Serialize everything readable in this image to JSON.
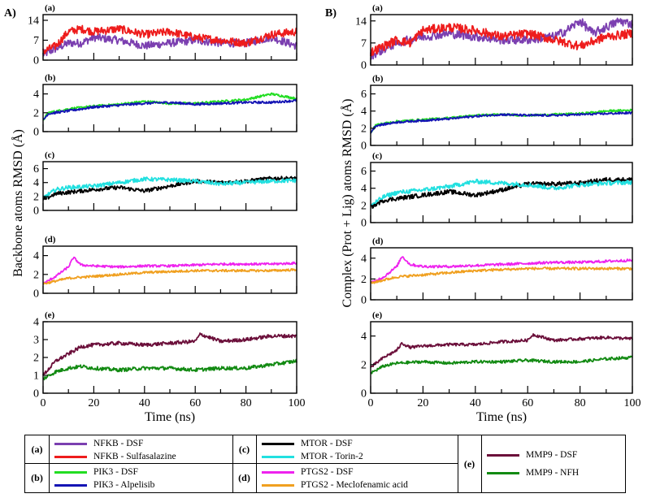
{
  "figure": {
    "panel_a_label": "A)",
    "panel_b_label": "B)",
    "ylabel_left": "Backbone atoms RMSD (Å)",
    "ylabel_right": "Complex (Prot + Lig) atoms RMSD (Å)",
    "xlabel": "Time (ns)",
    "x_ticks": [
      "0",
      "20",
      "40",
      "60",
      "80",
      "100"
    ]
  },
  "legend": {
    "groups": [
      {
        "tag": "(a)",
        "entries": [
          {
            "label": "NFKB - DSF",
            "color": "#7b3fb0"
          },
          {
            "label": "NFKB - Sulfasalazine",
            "color": "#ee1c1c"
          }
        ]
      },
      {
        "tag": "(b)",
        "entries": [
          {
            "label": "PIK3 - DSF",
            "color": "#22dd22"
          },
          {
            "label": "PIK3 - Alpelisib",
            "color": "#1414b4"
          }
        ]
      },
      {
        "tag": "(c)",
        "entries": [
          {
            "label": "MTOR - DSF",
            "color": "#000000"
          },
          {
            "label": "MTOR - Torin-2",
            "color": "#22e0e0"
          }
        ]
      },
      {
        "tag": "(d)",
        "entries": [
          {
            "label": "PTGS2 - DSF",
            "color": "#ee22ee"
          },
          {
            "label": "PTGS2 - Meclofenamic acid",
            "color": "#f0a020"
          }
        ]
      },
      {
        "tag": "(e)",
        "entries": [
          {
            "label": "MMP9 - DSF",
            "color": "#6b0f3a"
          },
          {
            "label": "MMP9 - NFH",
            "color": "#128a12"
          }
        ]
      }
    ]
  },
  "chart_data": [
    {
      "type": "line",
      "panel": "A(a)",
      "title": "(a)",
      "xlabel": "Time (ns)",
      "ylabel": "Backbone atoms RMSD (Å)",
      "xlim": [
        0,
        100
      ],
      "ylim": [
        0,
        16
      ],
      "yticks": [
        0,
        7,
        14
      ],
      "series": [
        {
          "name": "NFKB - DSF",
          "color": "#7b3fb0",
          "x": [
            0,
            5,
            10,
            15,
            20,
            30,
            40,
            50,
            60,
            70,
            80,
            90,
            100
          ],
          "y": [
            2,
            4,
            6,
            6,
            8,
            7,
            5,
            6,
            7,
            6,
            6,
            8,
            5
          ]
        },
        {
          "name": "NFKB - Sulfasalazine",
          "color": "#ee1c1c",
          "x": [
            0,
            5,
            10,
            15,
            20,
            30,
            40,
            50,
            60,
            70,
            80,
            90,
            100
          ],
          "y": [
            3,
            5,
            10,
            11,
            10,
            11,
            9,
            10,
            8,
            7,
            6,
            9,
            10
          ]
        }
      ]
    },
    {
      "type": "line",
      "panel": "A(b)",
      "title": "(b)",
      "xlabel": "Time (ns)",
      "ylabel": "Backbone atoms RMSD (Å)",
      "xlim": [
        0,
        100
      ],
      "ylim": [
        0,
        5
      ],
      "yticks": [
        0,
        2,
        4
      ],
      "series": [
        {
          "name": "PIK3 - DSF",
          "color": "#22dd22",
          "x": [
            0,
            2,
            10,
            20,
            30,
            40,
            50,
            60,
            70,
            80,
            90,
            100
          ],
          "y": [
            1.2,
            2.0,
            2.4,
            2.7,
            2.9,
            3.2,
            3.0,
            3.0,
            3.2,
            3.4,
            4.0,
            3.5
          ]
        },
        {
          "name": "PIK3 - Alpelisib",
          "color": "#1414b4",
          "x": [
            0,
            2,
            10,
            20,
            30,
            40,
            50,
            60,
            70,
            80,
            90,
            100
          ],
          "y": [
            1.2,
            1.9,
            2.2,
            2.6,
            2.8,
            3.0,
            3.1,
            2.9,
            3.0,
            3.1,
            3.1,
            3.3
          ]
        }
      ]
    },
    {
      "type": "line",
      "panel": "A(c)",
      "title": "(c)",
      "xlabel": "Time (ns)",
      "ylabel": "Backbone atoms RMSD (Å)",
      "xlim": [
        0,
        100
      ],
      "ylim": [
        0,
        7
      ],
      "yticks": [
        0,
        2,
        4,
        6
      ],
      "series": [
        {
          "name": "MTOR - DSF",
          "color": "#000000",
          "x": [
            0,
            5,
            10,
            20,
            30,
            40,
            50,
            60,
            70,
            80,
            90,
            100
          ],
          "y": [
            1.5,
            2.4,
            2.6,
            3.0,
            3.3,
            2.8,
            3.5,
            4.2,
            4.0,
            4.2,
            4.6,
            4.6
          ]
        },
        {
          "name": "MTOR - Torin-2",
          "color": "#22e0e0",
          "x": [
            0,
            5,
            10,
            20,
            30,
            40,
            50,
            60,
            70,
            80,
            90,
            100
          ],
          "y": [
            1.8,
            3.0,
            3.3,
            3.5,
            4.0,
            4.5,
            4.4,
            4.2,
            3.8,
            4.0,
            4.2,
            4.3
          ]
        }
      ]
    },
    {
      "type": "line",
      "panel": "A(d)",
      "title": "(d)",
      "xlabel": "Time (ns)",
      "ylabel": "Backbone atoms RMSD (Å)",
      "xlim": [
        0,
        100
      ],
      "ylim": [
        0,
        5
      ],
      "yticks": [
        0,
        2,
        4
      ],
      "series": [
        {
          "name": "PTGS2 - DSF",
          "color": "#ee22ee",
          "x": [
            0,
            5,
            10,
            12,
            15,
            20,
            30,
            40,
            50,
            60,
            70,
            80,
            90,
            100
          ],
          "y": [
            1.0,
            1.8,
            2.8,
            3.8,
            3.0,
            2.9,
            2.8,
            2.9,
            2.9,
            3.0,
            3.1,
            3.1,
            3.1,
            3.2
          ]
        },
        {
          "name": "PTGS2 - Meclofenamic acid",
          "color": "#f0a020",
          "x": [
            0,
            5,
            10,
            20,
            30,
            40,
            50,
            60,
            70,
            80,
            90,
            100
          ],
          "y": [
            1.0,
            1.3,
            1.6,
            1.8,
            2.0,
            2.2,
            2.3,
            2.4,
            2.4,
            2.4,
            2.4,
            2.5
          ]
        }
      ]
    },
    {
      "type": "line",
      "panel": "A(e)",
      "title": "(e)",
      "xlabel": "Time (ns)",
      "ylabel": "Backbone atoms RMSD (Å)",
      "xlim": [
        0,
        100
      ],
      "ylim": [
        0,
        4
      ],
      "yticks": [
        0,
        1,
        2,
        3,
        4
      ],
      "series": [
        {
          "name": "MMP9 - DSF",
          "color": "#6b0f3a",
          "x": [
            0,
            5,
            10,
            15,
            20,
            30,
            40,
            50,
            60,
            62,
            70,
            80,
            90,
            100
          ],
          "y": [
            1.0,
            1.8,
            2.2,
            2.6,
            2.7,
            2.8,
            2.7,
            2.8,
            2.9,
            3.3,
            2.9,
            3.0,
            3.2,
            3.2
          ]
        },
        {
          "name": "MMP9 - NFH",
          "color": "#128a12",
          "x": [
            0,
            5,
            10,
            15,
            20,
            30,
            40,
            50,
            60,
            70,
            80,
            90,
            100
          ],
          "y": [
            0.8,
            1.2,
            1.4,
            1.5,
            1.4,
            1.3,
            1.4,
            1.4,
            1.3,
            1.4,
            1.4,
            1.6,
            1.8
          ]
        }
      ]
    },
    {
      "type": "line",
      "panel": "B(a)",
      "title": "(a)",
      "xlabel": "Time (ns)",
      "ylabel": "Complex (Prot + Lig) atoms RMSD (Å)",
      "xlim": [
        0,
        100
      ],
      "ylim": [
        0,
        16
      ],
      "yticks": [
        0,
        7,
        14
      ],
      "series": [
        {
          "name": "NFKB - DSF",
          "color": "#7b3fb0",
          "x": [
            0,
            5,
            10,
            15,
            20,
            30,
            40,
            50,
            60,
            70,
            75,
            80,
            85,
            90,
            95,
            100
          ],
          "y": [
            3,
            5,
            7,
            8,
            9,
            10,
            9,
            8,
            8,
            9,
            11,
            14,
            10,
            12,
            14,
            13
          ]
        },
        {
          "name": "NFKB - Sulfasalazine",
          "color": "#ee1c1c",
          "x": [
            0,
            5,
            10,
            15,
            20,
            30,
            40,
            50,
            60,
            70,
            80,
            90,
            100
          ],
          "y": [
            4,
            6,
            8,
            7,
            11,
            12,
            11,
            9,
            10,
            8,
            6,
            9,
            10
          ]
        }
      ]
    },
    {
      "type": "line",
      "panel": "B(b)",
      "title": "(b)",
      "xlabel": "Time (ns)",
      "ylabel": "Complex (Prot + Lig) atoms RMSD (Å)",
      "xlim": [
        0,
        100
      ],
      "ylim": [
        0,
        7
      ],
      "yticks": [
        0,
        2,
        4,
        6
      ],
      "series": [
        {
          "name": "PIK3 - DSF",
          "color": "#22dd22",
          "x": [
            0,
            2,
            10,
            20,
            30,
            40,
            50,
            60,
            70,
            80,
            90,
            100
          ],
          "y": [
            1.5,
            2.4,
            2.8,
            3.0,
            3.2,
            3.5,
            3.6,
            3.5,
            3.6,
            3.7,
            4.0,
            4.1
          ]
        },
        {
          "name": "PIK3 - Alpelisib",
          "color": "#1414b4",
          "x": [
            0,
            2,
            10,
            20,
            30,
            40,
            50,
            60,
            70,
            80,
            90,
            100
          ],
          "y": [
            1.5,
            2.3,
            2.7,
            2.9,
            3.1,
            3.4,
            3.6,
            3.5,
            3.5,
            3.6,
            3.7,
            3.8
          ]
        }
      ]
    },
    {
      "type": "line",
      "panel": "B(c)",
      "title": "(c)",
      "xlabel": "Time (ns)",
      "ylabel": "Complex (Prot + Lig) atoms RMSD (Å)",
      "xlim": [
        0,
        100
      ],
      "ylim": [
        0,
        7
      ],
      "yticks": [
        0,
        2,
        4,
        6
      ],
      "series": [
        {
          "name": "MTOR - DSF",
          "color": "#000000",
          "x": [
            0,
            5,
            10,
            20,
            30,
            40,
            50,
            60,
            70,
            80,
            90,
            100
          ],
          "y": [
            1.8,
            2.6,
            2.8,
            3.2,
            3.6,
            3.2,
            3.8,
            4.5,
            4.5,
            4.6,
            5.0,
            5.0
          ]
        },
        {
          "name": "MTOR - Torin-2",
          "color": "#22e0e0",
          "x": [
            0,
            5,
            10,
            20,
            30,
            40,
            50,
            60,
            70,
            80,
            90,
            100
          ],
          "y": [
            2.0,
            3.0,
            3.5,
            3.8,
            4.2,
            4.8,
            4.6,
            4.4,
            4.0,
            4.4,
            4.6,
            4.7
          ]
        }
      ]
    },
    {
      "type": "line",
      "panel": "B(d)",
      "title": "(d)",
      "xlabel": "Time (ns)",
      "ylabel": "Complex (Prot + Lig) atoms RMSD (Å)",
      "xlim": [
        0,
        100
      ],
      "ylim": [
        0,
        5
      ],
      "yticks": [
        0,
        2,
        4
      ],
      "series": [
        {
          "name": "PTGS2 - DSF",
          "color": "#ee22ee",
          "x": [
            0,
            5,
            10,
            12,
            15,
            20,
            30,
            40,
            50,
            60,
            70,
            80,
            90,
            100
          ],
          "y": [
            1.6,
            2.2,
            3.2,
            4.2,
            3.4,
            3.2,
            3.2,
            3.3,
            3.4,
            3.5,
            3.6,
            3.6,
            3.7,
            3.8
          ]
        },
        {
          "name": "PTGS2 - Meclofenamic acid",
          "color": "#f0a020",
          "x": [
            0,
            5,
            10,
            20,
            30,
            40,
            50,
            60,
            70,
            80,
            90,
            100
          ],
          "y": [
            1.6,
            1.9,
            2.2,
            2.4,
            2.6,
            2.8,
            2.9,
            3.0,
            3.0,
            3.0,
            3.0,
            3.0
          ]
        }
      ]
    },
    {
      "type": "line",
      "panel": "B(e)",
      "title": "(e)",
      "xlabel": "Time (ns)",
      "ylabel": "Complex (Prot + Lig) atoms RMSD (Å)",
      "xlim": [
        0,
        100
      ],
      "ylim": [
        0,
        5
      ],
      "yticks": [
        0,
        2,
        4
      ],
      "series": [
        {
          "name": "MMP9 - DSF",
          "color": "#6b0f3a",
          "x": [
            0,
            5,
            10,
            12,
            15,
            20,
            30,
            40,
            50,
            60,
            62,
            70,
            80,
            90,
            100
          ],
          "y": [
            1.8,
            2.5,
            3.0,
            3.5,
            3.2,
            3.3,
            3.4,
            3.4,
            3.6,
            3.7,
            4.1,
            3.7,
            3.8,
            3.9,
            3.8
          ]
        },
        {
          "name": "MMP9 - NFH",
          "color": "#128a12",
          "x": [
            0,
            5,
            10,
            20,
            30,
            40,
            50,
            60,
            70,
            80,
            90,
            100
          ],
          "y": [
            1.4,
            1.9,
            2.1,
            2.2,
            2.1,
            2.2,
            2.2,
            2.3,
            2.2,
            2.2,
            2.4,
            2.5
          ]
        }
      ]
    }
  ]
}
